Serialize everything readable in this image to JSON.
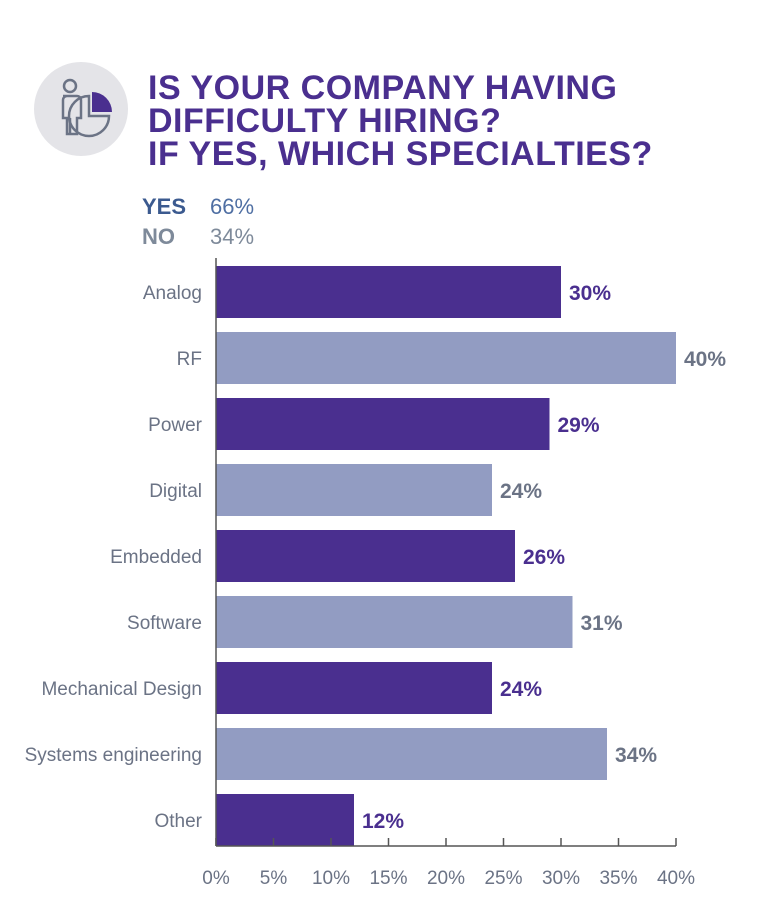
{
  "title": {
    "line1": "IS YOUR COMPANY HAVING",
    "line2": "DIFFICULTY HIRING?",
    "line3": "IF YES, WHICH SPECIALTIES?"
  },
  "icon": "person-pie-chart-icon",
  "legend": [
    {
      "label": "YES",
      "value": "66%",
      "color": "#3b5a8f"
    },
    {
      "label": "NO",
      "value": "34%",
      "color": "#7e8a9a"
    }
  ],
  "colors": {
    "title": "#4a2f8f",
    "bar_dark": "#4a2f8f",
    "bar_light": "#929cc2",
    "label_dark": "#4a2f8f",
    "label_light": "#6b7385",
    "axis": "#555555",
    "tick_label": "#6b7385"
  },
  "chart_data": {
    "type": "bar",
    "orientation": "horizontal",
    "title": "IS YOUR COMPANY HAVING DIFFICULTY HIRING? IF YES, WHICH SPECIALTIES?",
    "categories": [
      "Analog",
      "RF",
      "Power",
      "Digital",
      "Embedded",
      "Software",
      "Mechanical Design",
      "Systems engineering",
      "Other"
    ],
    "values": [
      30,
      40,
      29,
      24,
      26,
      31,
      24,
      34,
      12
    ],
    "value_labels": [
      "30%",
      "40%",
      "29%",
      "24%",
      "26%",
      "31%",
      "24%",
      "34%",
      "12%"
    ],
    "xlim": [
      0,
      40
    ],
    "xticks": [
      0,
      5,
      10,
      15,
      20,
      25,
      30,
      35,
      40
    ],
    "xtick_labels": [
      "0%",
      "5%",
      "10%",
      "15%",
      "20%",
      "25%",
      "30%",
      "35%",
      "40%"
    ],
    "xlabel": "",
    "ylabel": "",
    "grid": false
  }
}
